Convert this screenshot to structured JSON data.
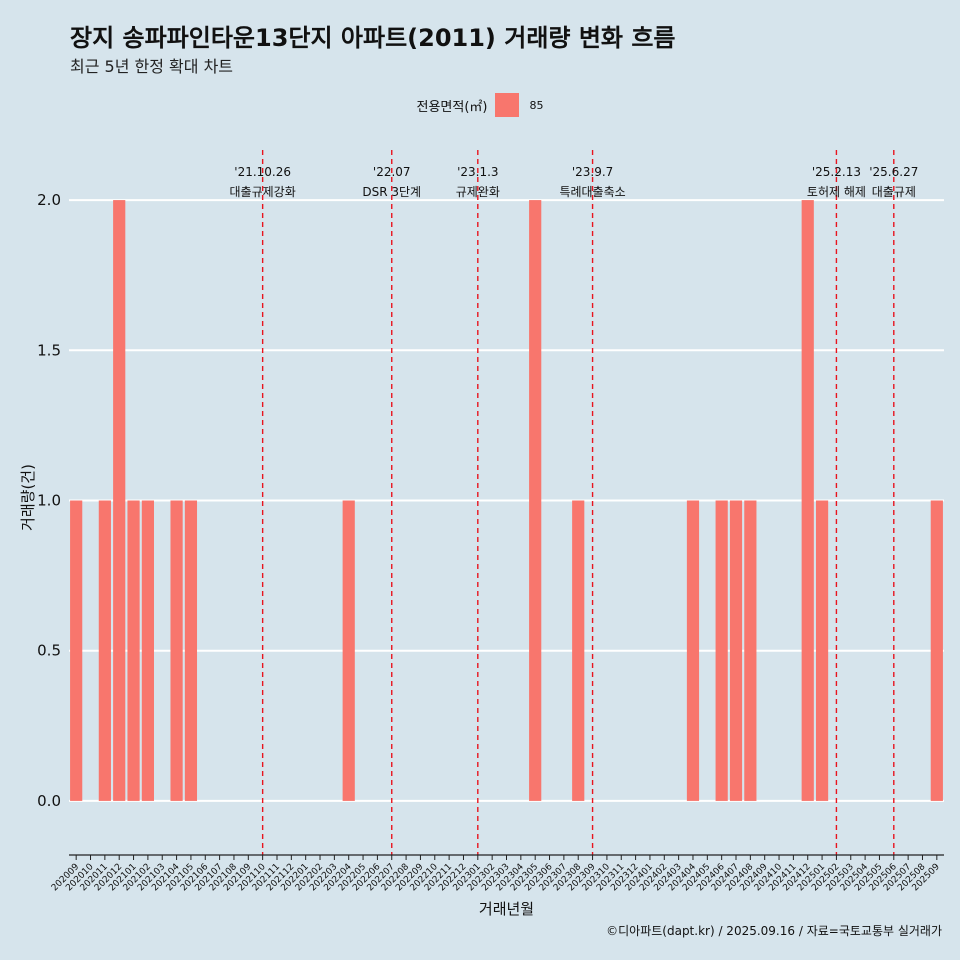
{
  "title": "장지 송파파인타운13단지 아파트(2011) 거래량 변화 흐름",
  "subtitle": "최근 5년 한정 확대 차트",
  "legend": {
    "title": "전용면적(㎡)",
    "label": "85",
    "color": "#f8766d"
  },
  "caption": "©디아파트(dapt.kr) / 2025.09.16 / 자료=국토교통부 실거래가",
  "chart_data": {
    "type": "bar",
    "title": "장지 송파파인타운13단지 아파트(2011) 거래량 변화 흐름",
    "xlabel": "거래년월",
    "ylabel": "거래량(건)",
    "ylim": [
      -0.18,
      2.2
    ],
    "yticks": [
      0.0,
      0.5,
      1.0,
      1.5,
      2.0
    ],
    "ytick_labels": [
      "0.0",
      "0.5",
      "1.0",
      "1.5",
      "2.0"
    ],
    "grid": true,
    "categories": [
      "202009",
      "202010",
      "202011",
      "202012",
      "202101",
      "202102",
      "202103",
      "202104",
      "202105",
      "202106",
      "202107",
      "202108",
      "202109",
      "202110",
      "202111",
      "202112",
      "202201",
      "202202",
      "202203",
      "202204",
      "202205",
      "202206",
      "202207",
      "202208",
      "202209",
      "202210",
      "202211",
      "202212",
      "202301",
      "202302",
      "202303",
      "202304",
      "202305",
      "202306",
      "202307",
      "202308",
      "202309",
      "202310",
      "202311",
      "202312",
      "202401",
      "202402",
      "202403",
      "202404",
      "202405",
      "202406",
      "202407",
      "202408",
      "202409",
      "202410",
      "202411",
      "202412",
      "202501",
      "202502",
      "202503",
      "202504",
      "202505",
      "202506",
      "202507",
      "202508",
      "202509"
    ],
    "series": [
      {
        "name": "85",
        "color": "#f8766d",
        "values": [
          1,
          0,
          1,
          2,
          1,
          1,
          0,
          1,
          1,
          0,
          0,
          0,
          0,
          0,
          0,
          0,
          0,
          0,
          0,
          1,
          0,
          0,
          0,
          0,
          0,
          0,
          0,
          0,
          0,
          0,
          0,
          0,
          2,
          0,
          0,
          1,
          0,
          0,
          0,
          0,
          0,
          0,
          0,
          1,
          0,
          1,
          1,
          1,
          0,
          0,
          0,
          2,
          1,
          0,
          0,
          0,
          0,
          0,
          0,
          0,
          1
        ]
      }
    ],
    "events": [
      {
        "date": "'21.10.26",
        "label": "대출규제강화",
        "at": "202110"
      },
      {
        "date": "'22.07",
        "label": "DSR 3단계",
        "at": "202207"
      },
      {
        "date": "'23.1.3",
        "label": "규제완화",
        "at": "202301"
      },
      {
        "date": "'23.9.7",
        "label": "특례대출축소",
        "at": "202309"
      },
      {
        "date": "'25.2.13",
        "label": "토허제 해제",
        "at": "202502"
      },
      {
        "date": "'25.6.27",
        "label": "대출규제",
        "at": "202506"
      }
    ]
  }
}
